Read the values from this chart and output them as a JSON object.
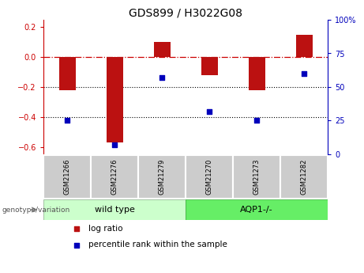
{
  "title": "GDS899 / H3022G08",
  "samples": [
    "GSM21266",
    "GSM21276",
    "GSM21279",
    "GSM21270",
    "GSM21273",
    "GSM21282"
  ],
  "log_ratios": [
    -0.22,
    -0.57,
    0.1,
    -0.12,
    -0.22,
    0.15
  ],
  "percentile_ranks": [
    25,
    7,
    57,
    32,
    25,
    60
  ],
  "group_wt_indices": [
    0,
    1,
    2
  ],
  "group_aqp_indices": [
    3,
    4,
    5
  ],
  "group_wt_label": "wild type",
  "group_aqp_label": "AQP1-/-",
  "group_wt_color": "#ccffcc",
  "group_aqp_color": "#66ee66",
  "bar_color": "#bb1111",
  "dot_color": "#0000bb",
  "ylim_left": [
    -0.65,
    0.25
  ],
  "ylim_right": [
    0,
    100
  ],
  "yticks_left": [
    -0.6,
    -0.4,
    -0.2,
    0.0,
    0.2
  ],
  "yticks_right": [
    0,
    25,
    50,
    75,
    100
  ],
  "hline_at_zero_color": "#cc0000",
  "hline_dotted_color": "#000000",
  "bar_width": 0.35,
  "sample_box_color": "#cccccc",
  "sample_box_edge": "#aaaaaa",
  "legend_label_ratio": "log ratio",
  "legend_label_pct": "percentile rank within the sample",
  "genotype_label": "genotype/variation",
  "left_tick_color": "#cc0000",
  "right_tick_color": "#0000bb",
  "title_fontsize": 10,
  "tick_labelsize": 7,
  "sample_fontsize": 6,
  "group_fontsize": 8,
  "legend_fontsize": 7.5
}
